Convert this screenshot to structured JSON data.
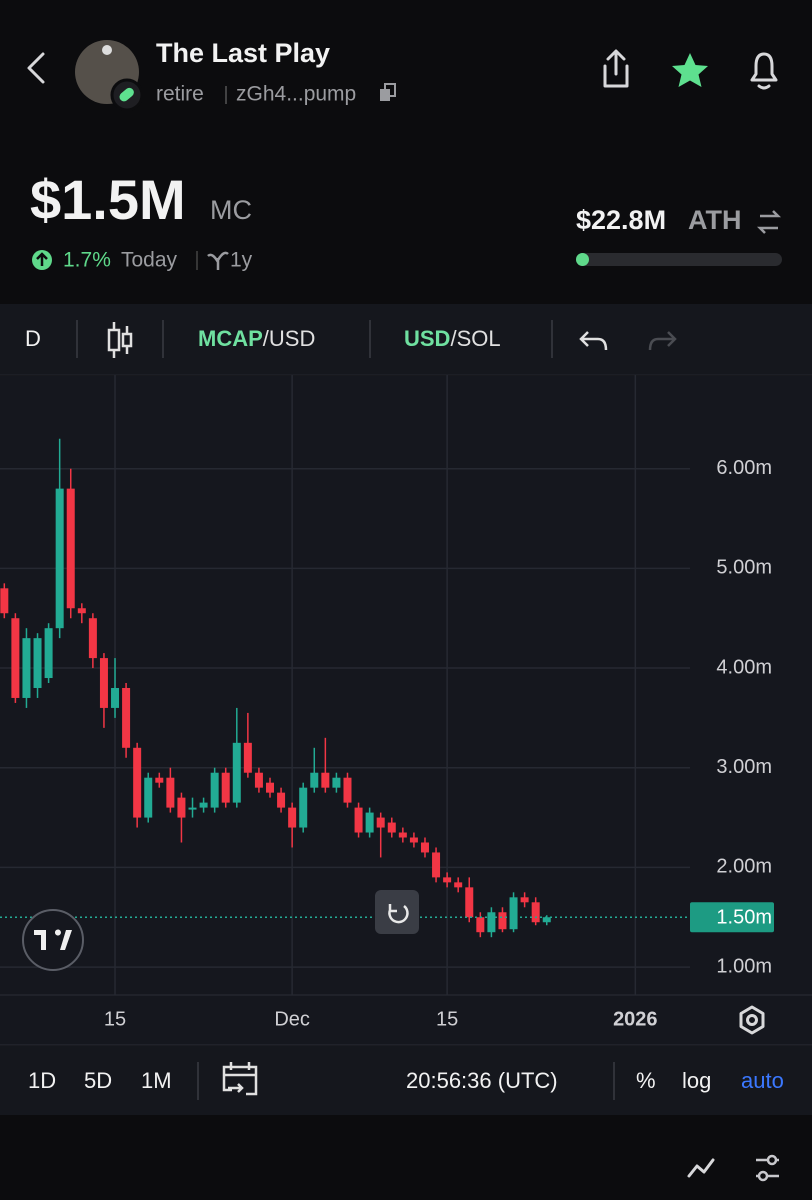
{
  "header": {
    "title": "The Last Play",
    "ticker": "retire",
    "address": "zGh4...pump"
  },
  "stats": {
    "market_cap": "$1.5M",
    "market_cap_unit": "MC",
    "change": "1.7%",
    "change_period": "Today",
    "age": "1y",
    "ath": "$22.8M",
    "ath_label": "ATH"
  },
  "toolbar": {
    "interval": "D",
    "pair1_main": "MCAP",
    "pair1_rest": "/USD",
    "pair2_main": "USD",
    "pair2_rest": "/SOL"
  },
  "chart_data": {
    "type": "candlestick",
    "up_color": "#22ab94",
    "down_color": "#f23645",
    "grid": true,
    "x": [
      4,
      5,
      6,
      7,
      8,
      9,
      10,
      11,
      12,
      13,
      14,
      15,
      16,
      17,
      18,
      19,
      20,
      21,
      22,
      23,
      24,
      25,
      26,
      27,
      28,
      29,
      30,
      31,
      32,
      33,
      34,
      35,
      36,
      37,
      38,
      39,
      40,
      41,
      42,
      43,
      44,
      45,
      46,
      47,
      48,
      49,
      50,
      51,
      52,
      53
    ],
    "open": [
      4.8,
      4.5,
      3.7,
      3.8,
      3.9,
      4.4,
      5.8,
      4.6,
      4.5,
      4.1,
      3.6,
      3.8,
      3.2,
      2.5,
      2.9,
      2.9,
      2.7,
      2.6,
      2.6,
      2.6,
      2.95,
      2.65,
      3.25,
      2.95,
      2.85,
      2.75,
      2.6,
      2.4,
      2.8,
      2.95,
      2.8,
      2.9,
      2.6,
      2.35,
      2.5,
      2.45,
      2.35,
      2.3,
      2.25,
      2.15,
      1.9,
      1.85,
      1.8,
      1.5,
      1.35,
      1.55,
      1.38,
      1.7,
      1.65,
      1.45
    ],
    "high": [
      4.85,
      4.55,
      4.4,
      4.35,
      4.45,
      6.3,
      6.0,
      4.65,
      4.55,
      4.15,
      4.1,
      3.85,
      3.25,
      2.95,
      2.95,
      3.0,
      2.75,
      2.7,
      2.7,
      3.0,
      3.0,
      3.6,
      3.55,
      3.0,
      2.9,
      2.8,
      2.65,
      2.85,
      3.2,
      3.3,
      2.95,
      2.95,
      2.65,
      2.6,
      2.55,
      2.5,
      2.4,
      2.35,
      2.3,
      2.2,
      1.95,
      1.9,
      1.9,
      1.55,
      1.6,
      1.6,
      1.75,
      1.75,
      1.7,
      1.52
    ],
    "low": [
      4.5,
      3.65,
      3.6,
      3.7,
      3.85,
      4.3,
      4.5,
      4.45,
      4.0,
      3.4,
      3.5,
      3.1,
      2.4,
      2.45,
      2.8,
      2.55,
      2.25,
      2.5,
      2.55,
      2.55,
      2.6,
      2.6,
      2.9,
      2.75,
      2.7,
      2.55,
      2.2,
      2.35,
      2.75,
      2.75,
      2.75,
      2.6,
      2.3,
      2.3,
      2.1,
      2.3,
      2.25,
      2.2,
      2.1,
      1.85,
      1.8,
      1.75,
      1.45,
      1.3,
      1.3,
      1.35,
      1.35,
      1.6,
      1.42,
      1.42
    ],
    "close": [
      4.55,
      3.7,
      4.3,
      4.3,
      4.4,
      5.8,
      4.6,
      4.55,
      4.1,
      3.6,
      3.8,
      3.2,
      2.5,
      2.9,
      2.85,
      2.6,
      2.5,
      2.6,
      2.65,
      2.95,
      2.65,
      3.25,
      2.95,
      2.8,
      2.75,
      2.6,
      2.4,
      2.8,
      2.95,
      2.8,
      2.9,
      2.65,
      2.35,
      2.55,
      2.4,
      2.35,
      2.3,
      2.25,
      2.15,
      1.9,
      1.85,
      1.8,
      1.5,
      1.35,
      1.55,
      1.38,
      1.7,
      1.65,
      1.45,
      1.5
    ],
    "xlim": [
      3.61,
      65.94
    ],
    "xticks": [
      {
        "value": 14,
        "label": "15"
      },
      {
        "value": 30,
        "label": "Dec"
      },
      {
        "value": 44,
        "label": "15"
      },
      {
        "value": 61,
        "label": "2026"
      }
    ],
    "ylim": [
      0.72,
      6.94
    ],
    "yticks": [
      {
        "value": 1,
        "label": "1.00m"
      },
      {
        "value": 2,
        "label": "2.00m"
      },
      {
        "value": 3,
        "label": "3.00m"
      },
      {
        "value": 4,
        "label": "4.00m"
      },
      {
        "value": 5,
        "label": "5.00m"
      },
      {
        "value": 6,
        "label": "6.00m"
      }
    ],
    "last_price": {
      "value": 1.5,
      "label": "1.50m"
    }
  },
  "bottom_bar": {
    "ranges": [
      "1D",
      "5D",
      "1M"
    ],
    "time": "20:56:36 (UTC)",
    "percent": "%",
    "log": "log",
    "auto": "auto"
  }
}
